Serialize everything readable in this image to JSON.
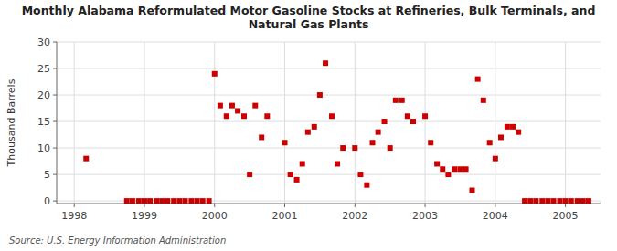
{
  "chart_data": {
    "type": "scatter",
    "title": "Monthly Alabama Reformulated Motor Gasoline Stocks at Refineries, Bulk Terminals, and\nNatural Gas Plants",
    "ylabel": "Thousand Barrels",
    "source": "Source: U.S. Energy Information Administration",
    "color": "#cc0000",
    "marker": "square",
    "grid": true,
    "xlim": [
      1997.75,
      2005.5
    ],
    "ylim": [
      -0.5,
      30
    ],
    "xticks": [
      1998,
      1999,
      2000,
      2001,
      2002,
      2003,
      2004,
      2005
    ],
    "yticks": [
      0,
      5,
      10,
      15,
      20,
      25,
      30
    ],
    "x": [
      1998.17,
      1998.75,
      1998.83,
      1998.92,
      1999.0,
      1999.08,
      1999.17,
      1999.25,
      1999.33,
      1999.42,
      1999.5,
      1999.58,
      1999.67,
      1999.75,
      1999.83,
      1999.92,
      2000.0,
      2000.08,
      2000.17,
      2000.25,
      2000.33,
      2000.42,
      2000.5,
      2000.58,
      2000.67,
      2000.75,
      2001.0,
      2001.08,
      2001.17,
      2001.25,
      2001.33,
      2001.42,
      2001.5,
      2001.58,
      2001.67,
      2001.75,
      2001.83,
      2002.0,
      2002.08,
      2002.17,
      2002.25,
      2002.33,
      2002.42,
      2002.5,
      2002.58,
      2002.67,
      2002.75,
      2002.83,
      2003.0,
      2003.08,
      2003.17,
      2003.25,
      2003.33,
      2003.42,
      2003.5,
      2003.58,
      2003.67,
      2003.75,
      2003.83,
      2003.92,
      2004.0,
      2004.08,
      2004.17,
      2004.25,
      2004.33,
      2004.42,
      2004.5,
      2004.58,
      2004.67,
      2004.75,
      2004.83,
      2004.92,
      2005.0,
      2005.08,
      2005.17,
      2005.25,
      2005.33
    ],
    "values": [
      8,
      0,
      0,
      0,
      0,
      0,
      0,
      0,
      0,
      0,
      0,
      0,
      0,
      0,
      0,
      0,
      24,
      18,
      16,
      18,
      17,
      16,
      5,
      18,
      12,
      16,
      11,
      5,
      4,
      7,
      13,
      14,
      20,
      26,
      16,
      7,
      10,
      10,
      5,
      3,
      11,
      13,
      15,
      10,
      19,
      19,
      16,
      15,
      16,
      11,
      7,
      6,
      5,
      6,
      6,
      6,
      2,
      23,
      19,
      11,
      8,
      12,
      14,
      14,
      13,
      0,
      0,
      0,
      0,
      0,
      0,
      0,
      0,
      0,
      0,
      0,
      0
    ]
  }
}
